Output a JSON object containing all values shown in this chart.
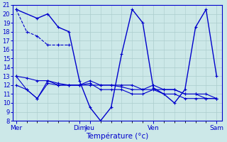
{
  "title": "Température (°c)",
  "bg_color": "#cce8e8",
  "grid_color": "#aacccc",
  "line_color": "#0000cc",
  "x_day_positions": [
    0,
    6,
    7,
    13,
    19
  ],
  "x_day_labels": [
    "Mer",
    "Dim",
    "Jeu",
    "Ven",
    "Sam"
  ],
  "ylim": [
    8,
    21
  ],
  "yticks": [
    8,
    9,
    10,
    11,
    12,
    13,
    14,
    15,
    16,
    17,
    18,
    19,
    20,
    21
  ],
  "xlim": [
    -0.3,
    19.5
  ],
  "series": [
    {
      "x": [
        0,
        1,
        2,
        3,
        4,
        5
      ],
      "y": [
        20.5,
        18,
        17.5,
        16.5,
        16.5,
        16.5
      ],
      "style": "dashed"
    },
    {
      "x": [
        0,
        2,
        3,
        4,
        5,
        6,
        7,
        8,
        9,
        10,
        11,
        12,
        13,
        14,
        15,
        16,
        17,
        18,
        19
      ],
      "y": [
        20.5,
        19.5,
        20,
        18.5,
        18,
        12.5,
        9.5,
        8,
        9.5,
        15.5,
        20.5,
        19,
        11.7,
        11,
        10,
        11.5,
        18.5,
        20.5,
        13
      ],
      "style": "solid"
    },
    {
      "x": [
        0,
        1,
        2,
        3,
        4,
        5,
        6,
        7,
        8,
        9,
        10,
        11,
        12,
        13,
        14,
        15,
        16,
        17,
        18,
        19
      ],
      "y": [
        13,
        12.8,
        12.5,
        12.5,
        12.2,
        12,
        12,
        12,
        12,
        12,
        11.8,
        11.5,
        11.5,
        11.5,
        11.5,
        11.5,
        11,
        11,
        11,
        10.5
      ],
      "style": "solid"
    },
    {
      "x": [
        0,
        1,
        2,
        3,
        4,
        5,
        6,
        7,
        8,
        9,
        10,
        11,
        12,
        13,
        14,
        15,
        16,
        17,
        18,
        19
      ],
      "y": [
        13,
        11.5,
        10.5,
        12.5,
        12,
        12,
        12,
        12.5,
        12,
        12,
        12,
        12,
        11.5,
        12,
        11.5,
        11.5,
        11,
        11,
        10.5,
        10.5
      ],
      "style": "solid"
    },
    {
      "x": [
        0,
        1,
        2,
        3,
        4,
        5,
        6,
        7,
        8,
        9,
        10,
        11,
        12,
        13,
        14,
        15,
        16,
        17,
        18,
        19
      ],
      "y": [
        12,
        11.5,
        10.5,
        12.2,
        12,
        12,
        12,
        12.2,
        11.5,
        11.5,
        11.5,
        11,
        11,
        11.5,
        11,
        11,
        10.5,
        10.5,
        10.5,
        10.5
      ],
      "style": "solid"
    }
  ]
}
